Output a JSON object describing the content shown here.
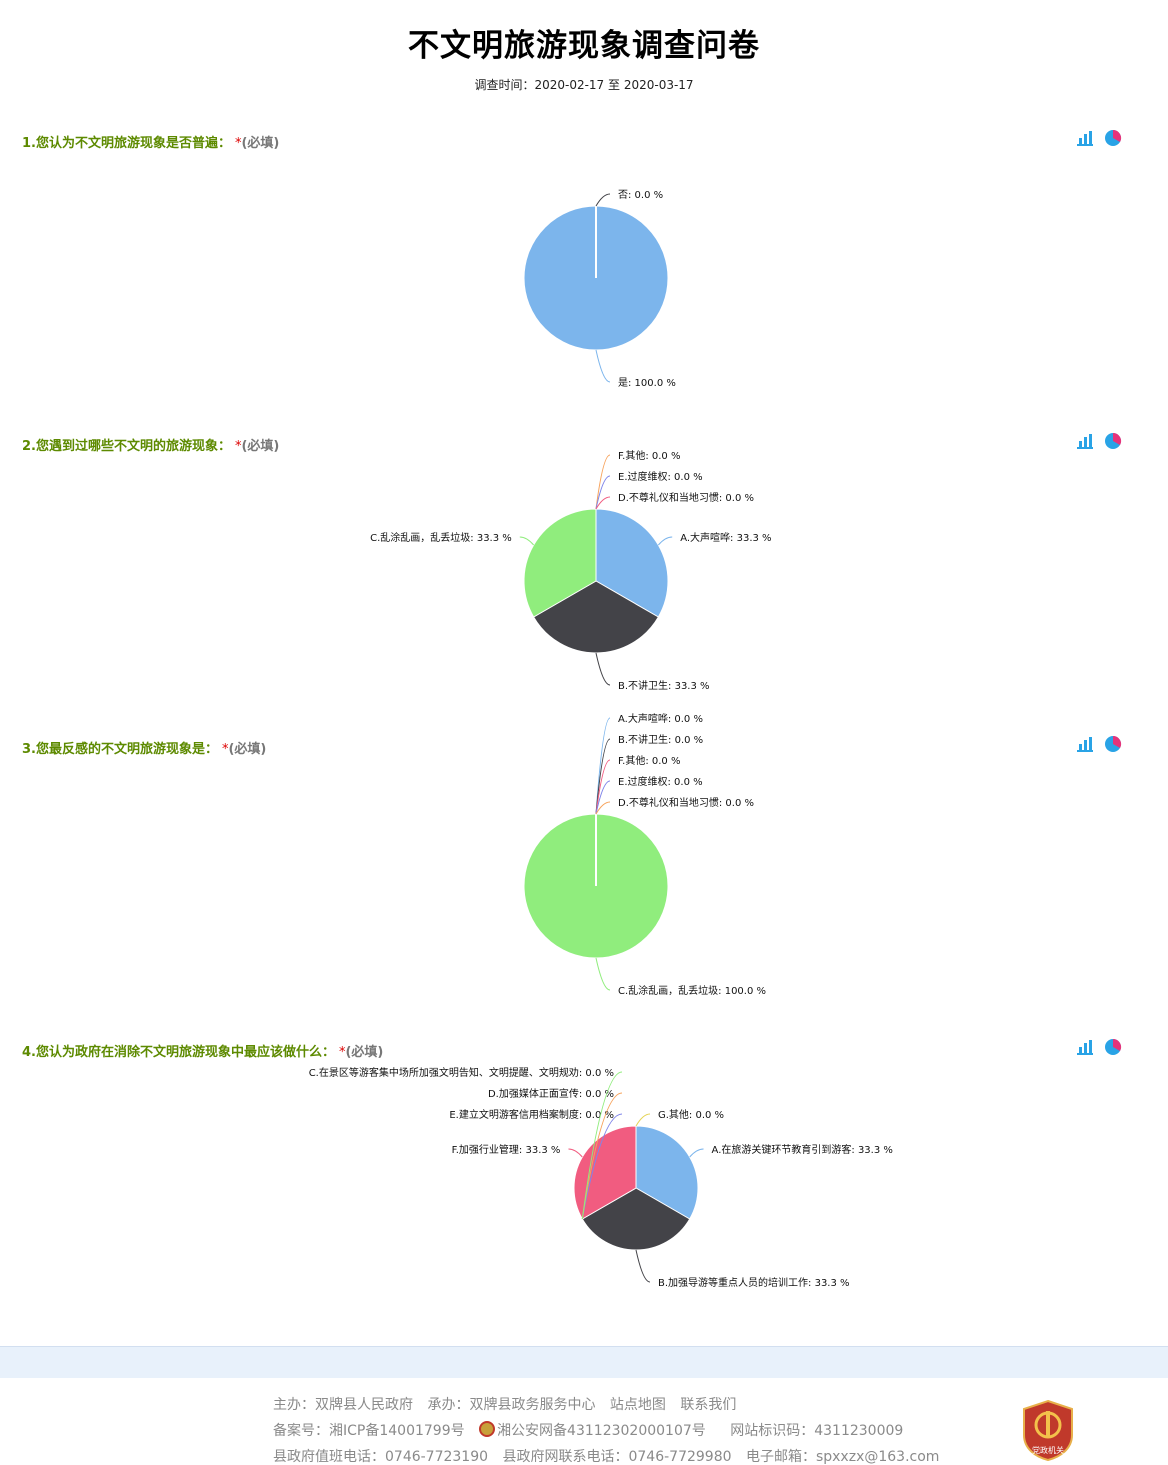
{
  "header": {
    "title": "不文明旅游现象调查问卷",
    "date_label": "调查时间：",
    "date_range": "2020-02-17 至 2020-03-17"
  },
  "questions": [
    {
      "title": "1.您认为不文明旅游现象是否普遍：",
      "star": "*",
      "required": "(必填)",
      "chart_data": {
        "type": "pie",
        "labels": [
          "是",
          "否"
        ],
        "values": [
          100.0,
          0.0
        ],
        "label_texts": [
          "是: 100.0 %",
          "否: 0.0 %"
        ],
        "colors": [
          "#7cb5ec",
          "#434348"
        ]
      }
    },
    {
      "title": "2.您遇到过哪些不文明的旅游现象：",
      "star": "*",
      "required": "(必填)",
      "chart_data": {
        "type": "pie",
        "labels": [
          "A.大声喧哗",
          "B.不讲卫生",
          "C.乱涂乱画，乱丢垃圾",
          "F.其他",
          "E.过度维权",
          "D.不尊礼仪和当地习惯"
        ],
        "values": [
          33.3,
          33.3,
          33.3,
          0.0,
          0.0,
          0.0
        ],
        "label_texts": [
          "A.大声喧哗: 33.3 %",
          "B.不讲卫生: 33.3 %",
          "C.乱涂乱画，乱丢垃圾: 33.3 %",
          "F.其他: 0.0 %",
          "E.过度维权: 0.0 %",
          "D.不尊礼仪和当地习惯: 0.0 %"
        ],
        "colors": [
          "#7cb5ec",
          "#434348",
          "#90ed7d",
          "#f7a35c",
          "#8085e9",
          "#f15c80"
        ]
      }
    },
    {
      "title": "3.您最反感的不文明旅游现象是：",
      "star": "*",
      "required": "(必填)",
      "chart_data": {
        "type": "pie",
        "labels": [
          "A.大声喧哗",
          "B.不讲卫生",
          "C.乱涂乱画，乱丢垃圾",
          "F.其他",
          "E.过度维权",
          "D.不尊礼仪和当地习惯"
        ],
        "values": [
          0.0,
          0.0,
          100.0,
          0.0,
          0.0,
          0.0
        ],
        "label_texts": [
          "A.大声喧哗: 0.0 %",
          "B.不讲卫生: 0.0 %",
          "C.乱涂乱画，乱丢垃圾: 100.0 %",
          "F.其他: 0.0 %",
          "E.过度维权: 0.0 %",
          "D.不尊礼仪和当地习惯: 0.0 %"
        ],
        "colors": [
          "#7cb5ec",
          "#434348",
          "#90ed7d",
          "#f15c80",
          "#8085e9",
          "#f7a35c"
        ]
      }
    },
    {
      "title": "4.您认为政府在消除不文明旅游现象中最应该做什么：",
      "star": "*",
      "required": "(必填)",
      "chart_data": {
        "type": "pie",
        "labels": [
          "A.在旅游关键环节教育引到游客",
          "B.加强导游等重点人员的培训工作",
          "E.建立文明游客信用档案制度",
          "D.加强媒体正面宣传",
          "C.在景区等游客集中场所加强文明告知、文明提醒、文明规劝",
          "F.加强行业管理",
          "G.其他"
        ],
        "values": [
          33.3,
          33.3,
          0.0,
          0.0,
          0.0,
          33.3,
          0.0
        ],
        "label_texts": [
          "A.在旅游关键环节教育引到游客: 33.3 %",
          "B.加强导游等重点人员的培训工作: 33.3 %",
          "E.建立文明游客信用档案制度: 0.0 %",
          "D.加强媒体正面宣传: 0.0 %",
          "C.在景区等游客集中场所加强文明告知、文明提醒、文明规劝: 0.0 %",
          "F.加强行业管理: 33.3 %",
          "G.其他: 0.0 %"
        ],
        "colors": [
          "#7cb5ec",
          "#434348",
          "#8085e9",
          "#f7a35c",
          "#90ed7d",
          "#f15c80",
          "#e4d354"
        ]
      }
    }
  ],
  "icons": {
    "bar": "bar-chart-icon",
    "pie": "pie-chart-icon"
  },
  "footer": {
    "line1": [
      "主办：双牌县人民政府",
      "承办：双牌县政务服务中心",
      "站点地图",
      "联系我们"
    ],
    "line2": [
      "备案号：湘ICP备14001799号",
      "湘公安网备43112302000107号",
      "网站标识码：4311230009"
    ],
    "line3": [
      "县政府值班电话：0746-7723190",
      "县政府网联系电话：0746-7729980",
      "电子邮箱：spxxzx@163.com"
    ],
    "badge_text": "党政机关"
  }
}
